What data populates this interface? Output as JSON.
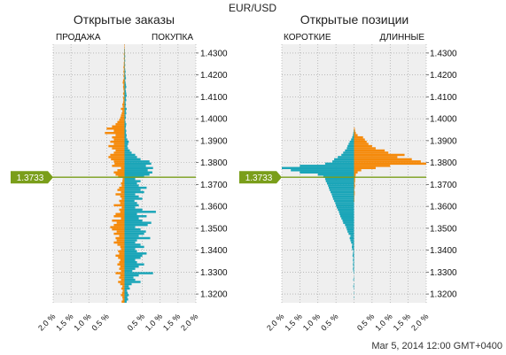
{
  "header": {
    "pair": "EUR/USD",
    "timestamp": "Mar 5, 2014 12:00 GMT+0400"
  },
  "colors": {
    "sell": "#f58a0b",
    "buy": "#1aa5b8",
    "price": "#7a9e1a",
    "plot_bg": "#efefef",
    "grid": "#9a9a9a"
  },
  "current_price": "1.3733",
  "chart_data": [
    {
      "type": "bar",
      "orientation": "horizontal",
      "title": "Открытые заказы",
      "left_label": "ПРОДАЖА",
      "right_label": "ПОКУПКА",
      "x_ticks": [
        "2.0 %",
        "1.5 %",
        "1.0 %",
        "0.5 %",
        "0.5 %",
        "1.0 %",
        "1.5 %",
        "2.0 %"
      ],
      "y_ticks": [
        "1.4300",
        "1.4200",
        "1.4100",
        "1.4000",
        "1.3900",
        "1.3800",
        "1.3700",
        "1.3600",
        "1.3500",
        "1.3400",
        "1.3300",
        "1.3200"
      ],
      "xlim": [
        -2.0,
        2.0
      ],
      "ylim": [
        1.316,
        1.434
      ],
      "bins": {
        "start": 1.3165,
        "step": 0.001,
        "sell": [
          0.08,
          0.05,
          0.06,
          0.1,
          0.07,
          0.05,
          0.09,
          0.06,
          0.12,
          0.18,
          0.1,
          0.15,
          0.12,
          0.25,
          0.1,
          0.15,
          0.12,
          0.2,
          0.15,
          0.12,
          0.18,
          0.25,
          0.15,
          0.18,
          0.1,
          0.12,
          0.2,
          0.3,
          0.22,
          0.25,
          0.15,
          0.3,
          0.22,
          0.35,
          0.4,
          0.3,
          0.22,
          0.35,
          0.1,
          0.3,
          0.25,
          0.12,
          0.15,
          0.08,
          0.3,
          0.12,
          0.15,
          0.08,
          0.12,
          0.25,
          0.1,
          0.2,
          0.15,
          0.08,
          0.1,
          0.06,
          0.05,
          0.18,
          0.25,
          0.3,
          0.2,
          0.1,
          0.35,
          0.28,
          0.3,
          0.38,
          0.45,
          0.4,
          0.3,
          0.25,
          0.35,
          0.45,
          0.3,
          0.4,
          0.3,
          0.35,
          0.25,
          0.55,
          0.3,
          0.5,
          0.35,
          0.25,
          0.2,
          0.15,
          0.12,
          0.1,
          0.08,
          0.06,
          0.1,
          0.05,
          0.06,
          0.04,
          0.03,
          0.04,
          0.02,
          0.04,
          0.02,
          0.03,
          0.04,
          0.03,
          0.05,
          0.04,
          0.02,
          0.03,
          0.02,
          0.03,
          0.02,
          0.03,
          0.02,
          0.02,
          0.01,
          0.02,
          0.01,
          0.02,
          0.01,
          0.01,
          0.01,
          0.01
        ],
        "buy": [
          0.06,
          0.1,
          0.08,
          0.12,
          0.09,
          0.07,
          0.15,
          0.12,
          0.2,
          0.45,
          0.3,
          0.25,
          0.4,
          0.8,
          0.22,
          0.3,
          0.4,
          0.55,
          0.35,
          0.3,
          0.45,
          0.5,
          0.62,
          0.35,
          0.3,
          0.55,
          0.45,
          0.3,
          0.35,
          0.72,
          0.4,
          0.55,
          0.6,
          0.45,
          0.3,
          0.65,
          0.75,
          0.5,
          0.4,
          0.62,
          0.35,
          0.88,
          0.5,
          0.3,
          0.4,
          0.35,
          0.28,
          0.5,
          0.4,
          0.3,
          0.55,
          0.45,
          0.62,
          0.4,
          0.35,
          0.45,
          0.3,
          0.55,
          0.7,
          0.78,
          0.65,
          0.8,
          0.6,
          0.75,
          0.7,
          0.45,
          0.35,
          0.3,
          0.2,
          0.15,
          0.1,
          0.08,
          0.1,
          0.12,
          0.08,
          0.05,
          0.06,
          0.04,
          0.05,
          0.03,
          0.04,
          0.05,
          0.03,
          0.02,
          0.04,
          0.03,
          0.05,
          0.04,
          0.06,
          0.03,
          0.04,
          0.03,
          0.05,
          0.04,
          0.06,
          0.05,
          0.04,
          0.03,
          0.05,
          0.04,
          0.03,
          0.02,
          0.04,
          0.03,
          0.02,
          0.03,
          0.02,
          0.01,
          0.02,
          0.01,
          0.02,
          0.01,
          0.02,
          0.01,
          0.01,
          0.01
        ]
      }
    },
    {
      "type": "bar",
      "orientation": "horizontal",
      "title": "Открытые позиции",
      "left_label": "КОРОТКИЕ",
      "right_label": "ДЛИННЫЕ",
      "x_ticks": [
        "2.0 %",
        "1.5 %",
        "1.0 %",
        "0.5 %",
        "0.5 %",
        "1.0 %",
        "1.5 %",
        "2.0 %"
      ],
      "y_ticks": [
        "1.4300",
        "1.4200",
        "1.4100",
        "1.4000",
        "1.3900",
        "1.3800",
        "1.3700",
        "1.3600",
        "1.3500",
        "1.3400",
        "1.3300",
        "1.3200"
      ],
      "xlim": [
        -2.0,
        2.0
      ],
      "ylim": [
        1.316,
        1.434
      ],
      "bins": {
        "start": 1.3165,
        "step": 0.001,
        "short": [
          0.0,
          0.0,
          0.01,
          0.0,
          0.01,
          0.0,
          0.01,
          0.02,
          0.01,
          0.0,
          0.02,
          0.01,
          0.0,
          0.01,
          0.02,
          0.03,
          0.02,
          0.03,
          0.02,
          0.03,
          0.02,
          0.04,
          0.03,
          0.02,
          0.05,
          0.06,
          0.05,
          0.08,
          0.1,
          0.12,
          0.1,
          0.15,
          0.18,
          0.2,
          0.22,
          0.25,
          0.3,
          0.32,
          0.35,
          0.38,
          0.4,
          0.42,
          0.45,
          0.48,
          0.5,
          0.52,
          0.55,
          0.58,
          0.6,
          0.62,
          0.65,
          0.68,
          0.7,
          0.72,
          0.75,
          0.78,
          0.8,
          0.85,
          1.0,
          1.5,
          1.75,
          2.0,
          1.5,
          0.8,
          0.6,
          0.55,
          0.45,
          0.35,
          0.3,
          0.25,
          0.2,
          0.18,
          0.15,
          0.12,
          0.08,
          0.05,
          0.03,
          0.02,
          0.01,
          0.0,
          0.0,
          0.0,
          0.0,
          0.0,
          0.0,
          0.0,
          0.0,
          0.0,
          0.0,
          0.0,
          0.0,
          0.0,
          0.0,
          0.0,
          0.0,
          0.0,
          0.0,
          0.0,
          0.0,
          0.0,
          0.0,
          0.0,
          0.0,
          0.0,
          0.0,
          0.0,
          0.0,
          0.0,
          0.0,
          0.0,
          0.0,
          0.0,
          0.0,
          0.0,
          0.0,
          0.0,
          0.0,
          0.0
        ],
        "long": [
          0.0,
          0.0,
          0.0,
          0.0,
          0.0,
          0.0,
          0.0,
          0.0,
          0.0,
          0.0,
          0.0,
          0.0,
          0.0,
          0.0,
          0.0,
          0.0,
          0.0,
          0.0,
          0.0,
          0.0,
          0.0,
          0.0,
          0.0,
          0.0,
          0.0,
          0.0,
          0.0,
          0.0,
          0.0,
          0.0,
          0.0,
          0.0,
          0.0,
          0.0,
          0.0,
          0.0,
          0.0,
          0.0,
          0.0,
          0.0,
          0.0,
          0.0,
          0.0,
          0.0,
          0.0,
          0.0,
          0.01,
          0.01,
          0.01,
          0.02,
          0.02,
          0.01,
          0.02,
          0.03,
          0.02,
          0.03,
          0.03,
          0.04,
          0.05,
          0.1,
          0.2,
          0.6,
          1.0,
          2.0,
          1.85,
          1.6,
          1.2,
          1.4,
          0.95,
          0.85,
          0.6,
          0.5,
          0.4,
          0.35,
          0.3,
          0.25,
          0.1,
          0.05,
          0.03,
          0.02,
          0.0,
          0.0,
          0.0,
          0.0,
          0.0,
          0.0,
          0.0,
          0.0,
          0.0,
          0.0,
          0.0,
          0.0,
          0.0,
          0.0,
          0.0,
          0.0,
          0.0,
          0.0,
          0.0,
          0.0,
          0.0,
          0.0,
          0.0,
          0.0,
          0.0,
          0.0,
          0.0,
          0.0,
          0.0,
          0.0,
          0.0,
          0.0,
          0.0,
          0.0,
          0.0,
          0.0,
          0.0,
          0.0
        ]
      }
    }
  ]
}
